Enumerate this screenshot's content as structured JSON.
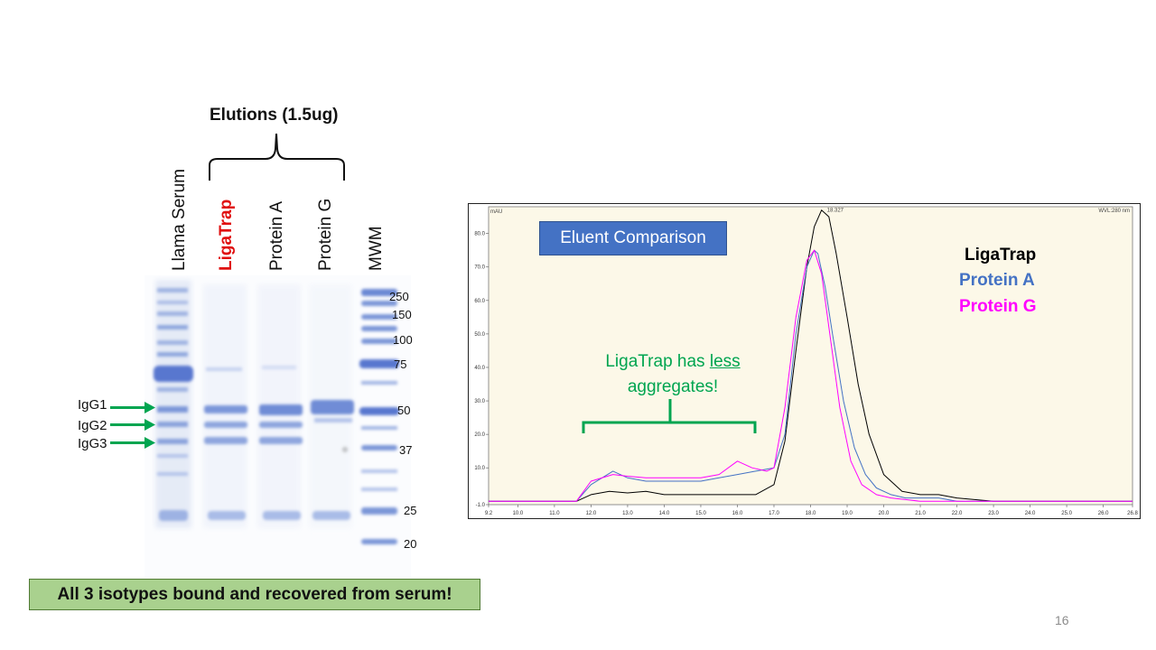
{
  "gel": {
    "elutions_title": "Elutions (1.5ug)",
    "lanes": [
      "Llama Serum",
      "LigaTrap",
      "Protein A",
      "Protein G",
      "MWM"
    ],
    "mw_markers": [
      "250",
      "150",
      "100",
      "75",
      "50",
      "37",
      "25",
      "20"
    ],
    "igg_labels": [
      "IgG1",
      "IgG2",
      "IgG3"
    ],
    "footer": "All 3 isotypes bound and recovered from serum!"
  },
  "chromatogram": {
    "title": "Eluent Comparison",
    "legend": [
      {
        "name": "LigaTrap",
        "color": "#000000"
      },
      {
        "name": "Protein A",
        "color": "#4472c4"
      },
      {
        "name": "Protein G",
        "color": "#ff00ff"
      }
    ],
    "annotation_pre": "LigaTrap has ",
    "annotation_underlined": "less",
    "annotation_post": "aggregates!",
    "unit": "mAU",
    "wavelength": "WVL:280 nm",
    "peak_label": "18.327",
    "x_ticks": [
      "9.2",
      "10.0",
      "11.0",
      "12.0",
      "13.0",
      "14.0",
      "15.0",
      "16.0",
      "17.0",
      "18.0",
      "19.0",
      "20.0",
      "21.0",
      "22.0",
      "23.0",
      "24.0",
      "25.0",
      "26.0",
      "26.8"
    ],
    "y_ticks": [
      "-1.0",
      "10.0",
      "20.0",
      "30.0",
      "40.0",
      "50.0",
      "60.0",
      "70.0",
      "80.0"
    ]
  },
  "chart_data": {
    "type": "line",
    "xlim": [
      9.2,
      26.8
    ],
    "ylim": [
      -1,
      88
    ],
    "series": [
      {
        "name": "LigaTrap",
        "color": "#000000",
        "x": [
          9.2,
          11.6,
          12.0,
          12.5,
          13.0,
          13.5,
          14.0,
          14.5,
          15.0,
          15.5,
          16.0,
          16.5,
          17.0,
          17.3,
          17.6,
          17.9,
          18.1,
          18.3,
          18.5,
          18.7,
          19.0,
          19.3,
          19.6,
          20.0,
          20.5,
          21.0,
          21.5,
          22.0,
          23.0,
          24.0,
          26.8
        ],
        "y": [
          0,
          0,
          2,
          3,
          2.5,
          3,
          2,
          2,
          2,
          2,
          2,
          2,
          5,
          18,
          45,
          70,
          82,
          87,
          85,
          74,
          55,
          35,
          20,
          8,
          3,
          2,
          2,
          1,
          0,
          0,
          0
        ]
      },
      {
        "name": "Protein A",
        "color": "#4472c4",
        "x": [
          9.2,
          11.6,
          12.0,
          12.6,
          13.0,
          13.5,
          14.0,
          14.5,
          15.0,
          15.5,
          16.0,
          16.5,
          17.0,
          17.3,
          17.6,
          17.9,
          18.1,
          18.2,
          18.4,
          18.6,
          18.9,
          19.2,
          19.5,
          19.8,
          20.2,
          20.6,
          21.0,
          21.5,
          22.0,
          23.0,
          26.8
        ],
        "y": [
          0,
          0,
          5,
          9,
          7,
          6,
          6,
          6,
          6,
          7,
          8,
          9,
          10,
          20,
          50,
          70,
          75,
          74,
          64,
          50,
          30,
          16,
          8,
          4,
          2,
          1,
          1,
          1,
          0,
          0,
          0
        ]
      },
      {
        "name": "Protein G",
        "color": "#ff00ff",
        "x": [
          9.2,
          11.6,
          12.0,
          12.6,
          13.0,
          13.5,
          14.0,
          14.5,
          15.0,
          15.5,
          16.0,
          16.4,
          16.8,
          17.0,
          17.3,
          17.6,
          17.9,
          18.1,
          18.3,
          18.5,
          18.8,
          19.1,
          19.4,
          19.8,
          20.2,
          20.6,
          21.0,
          22.0,
          26.8
        ],
        "y": [
          0,
          0,
          6,
          8,
          7.5,
          7,
          7,
          7,
          7,
          8,
          12,
          10,
          9,
          10,
          28,
          55,
          72,
          75,
          68,
          52,
          28,
          12,
          5,
          2,
          1,
          0.5,
          0,
          0,
          0
        ]
      }
    ]
  }
}
